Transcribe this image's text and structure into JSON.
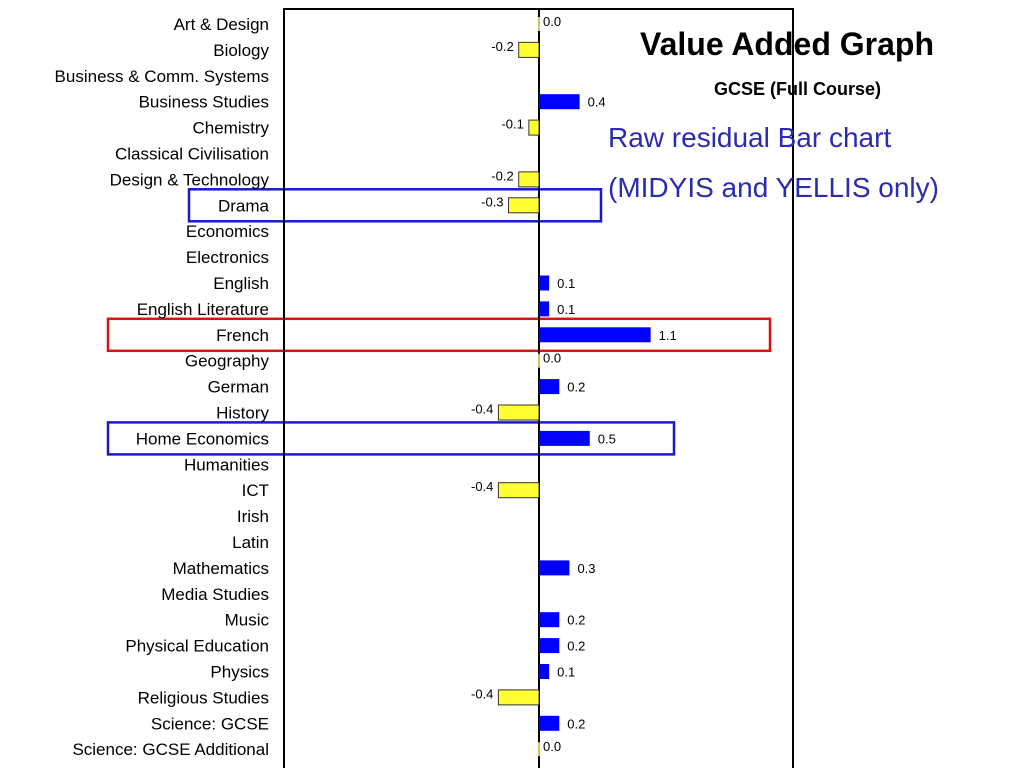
{
  "chart_data": {
    "type": "bar",
    "orientation": "horizontal",
    "title": "Value Added Graph",
    "subtitle": "GCSE (Full Course)",
    "annotation": [
      "Raw residual Bar chart",
      "(MIDYIS and YELLIS only)"
    ],
    "categories": [
      "Art & Design",
      "Biology",
      "Business & Comm. Systems",
      "Business Studies",
      "Chemistry",
      "Classical Civilisation",
      "Design & Technology",
      "Drama",
      "Economics",
      "Electronics",
      "English",
      "English Literature",
      "French",
      "Geography",
      "German",
      "History",
      "Home Economics",
      "Humanities",
      "ICT",
      "Irish",
      "Latin",
      "Mathematics",
      "Media Studies",
      "Music",
      "Physical Education",
      "Physics",
      "Religious Studies",
      "Science: GCSE",
      "Science: GCSE Additional"
    ],
    "values": [
      0.0,
      -0.2,
      null,
      0.4,
      -0.1,
      null,
      -0.2,
      -0.3,
      null,
      null,
      0.1,
      0.1,
      1.1,
      0.0,
      0.2,
      -0.4,
      0.5,
      null,
      -0.4,
      null,
      null,
      0.3,
      null,
      0.2,
      0.2,
      0.1,
      -0.4,
      0.2,
      0.0
    ],
    "labels": [
      "0.0",
      "-0.2",
      "",
      "0.4",
      "-0.1",
      "",
      "-0.2",
      "-0.3",
      "",
      "",
      "0.1",
      "0.1",
      "1.1",
      "0.0",
      "0.2",
      "-0.4",
      "0.5",
      "",
      "-0.4",
      "",
      "",
      "0.3",
      "",
      "0.2",
      "0.2",
      "0.1",
      "-0.4",
      "0.2",
      "0.0"
    ],
    "highlighted_rows": [
      {
        "category": "Drama",
        "color": "#1a1acc"
      },
      {
        "category": "French",
        "color": "#dd1111"
      },
      {
        "category": "Home Economics",
        "color": "#1a1acc"
      }
    ],
    "xlim": [
      -2.5,
      2.5
    ],
    "colors": {
      "positive": "#0000ff",
      "negative": "#ffff33",
      "zero": "#d4c060"
    }
  }
}
